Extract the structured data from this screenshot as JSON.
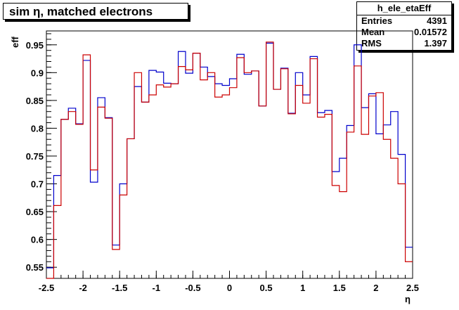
{
  "title": "sim η,  matched electrons",
  "stats": {
    "name": "h_ele_etaEff",
    "rows": [
      {
        "label": "Entries",
        "value": "4391"
      },
      {
        "label": "Mean",
        "value": "0.01572"
      },
      {
        "label": "RMS",
        "value": "1.397"
      }
    ]
  },
  "chart_data": {
    "type": "line",
    "title": "sim η,  matched electrons",
    "xlabel": "η",
    "ylabel": "eff",
    "xlim": [
      -2.5,
      2.5
    ],
    "ylim": [
      0.53,
      0.975
    ],
    "xticks": [
      -2.5,
      -2,
      -1.5,
      -1,
      -0.5,
      0,
      0.5,
      1,
      1.5,
      2,
      2.5
    ],
    "xtick_labels": [
      "-2.5",
      "-2",
      "-1.5",
      "-1",
      "-0.5",
      "0",
      "0.5",
      "1",
      "1.5",
      "2",
      "2.5"
    ],
    "yticks": [
      0.55,
      0.6,
      0.65,
      0.7,
      0.75,
      0.8,
      0.85,
      0.9,
      0.95
    ],
    "ytick_labels": [
      "0.55",
      "0.6",
      "0.65",
      "0.7",
      "0.75",
      "0.8",
      "0.85",
      "0.9",
      "0.95"
    ],
    "bin_edges_start": -2.5,
    "bin_width": 0.1,
    "series": [
      {
        "color": "#0000cc",
        "values": [
          0.549,
          0.715,
          0.816,
          0.836,
          0.808,
          0.922,
          0.703,
          0.855,
          0.819,
          0.59,
          0.7,
          0.781,
          0.875,
          0.847,
          0.904,
          0.901,
          0.881,
          0.88,
          0.938,
          0.899,
          0.935,
          0.91,
          0.893,
          0.88,
          0.877,
          0.889,
          0.933,
          0.897,
          0.903,
          0.84,
          0.953,
          0.87,
          0.908,
          0.827,
          0.9,
          0.86,
          0.929,
          0.828,
          0.832,
          0.722,
          0.746,
          0.805,
          0.95,
          0.837,
          0.862,
          0.79,
          0.806,
          0.83,
          0.753,
          0.586
        ]
      },
      {
        "color": "#cc0000",
        "values": [
          0.53,
          0.661,
          0.816,
          0.83,
          0.807,
          0.932,
          0.725,
          0.838,
          0.818,
          0.582,
          0.68,
          0.781,
          0.9,
          0.847,
          0.86,
          0.878,
          0.874,
          0.88,
          0.911,
          0.905,
          0.935,
          0.887,
          0.9,
          0.856,
          0.86,
          0.873,
          0.927,
          0.9,
          0.903,
          0.84,
          0.955,
          0.87,
          0.907,
          0.826,
          0.877,
          0.845,
          0.925,
          0.82,
          0.825,
          0.697,
          0.686,
          0.793,
          0.912,
          0.789,
          0.858,
          0.864,
          0.78,
          0.746,
          0.7,
          0.56
        ]
      }
    ]
  }
}
